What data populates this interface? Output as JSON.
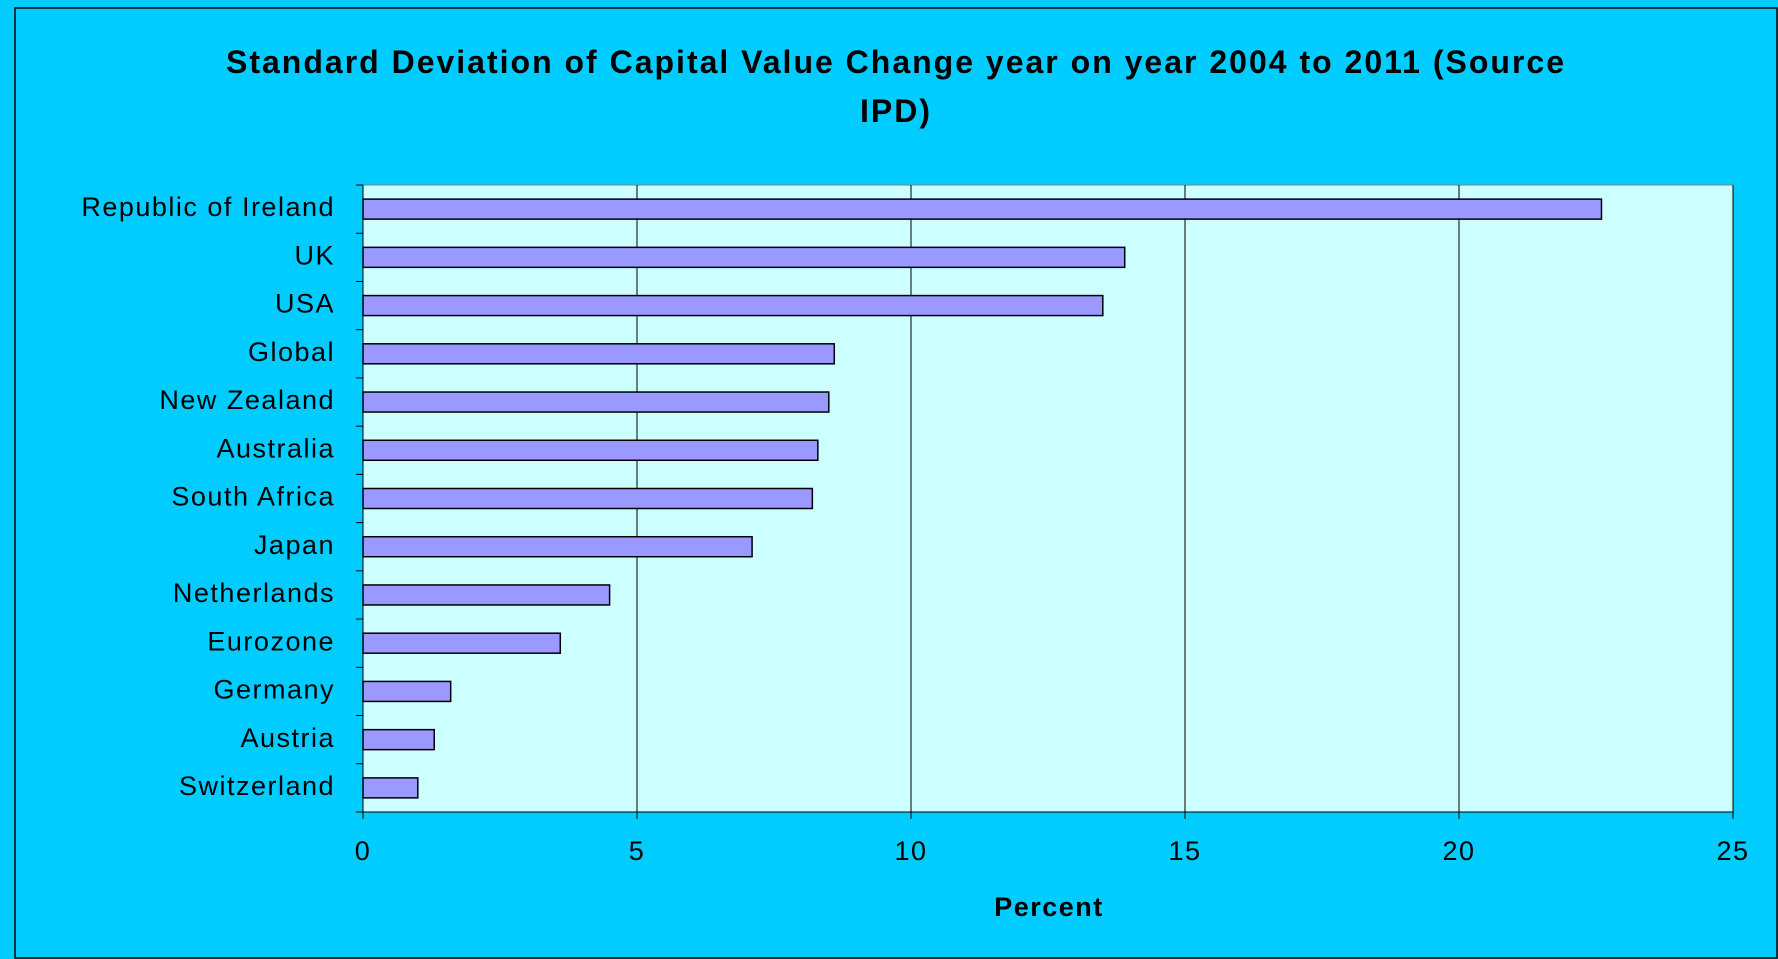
{
  "chart_data": {
    "type": "hbar",
    "title": "Standard Deviation of Capital Value Change year on year 2004 to 2011 (Source IPD)",
    "x_label": "Percent",
    "categories": [
      "Republic of Ireland",
      "UK",
      "USA",
      "Global",
      "New Zealand",
      "Australia",
      "South Africa",
      "Japan",
      "Netherlands",
      "Eurozone",
      "Germany",
      "Austria",
      "Switzerland"
    ],
    "values": [
      22.6,
      13.9,
      13.5,
      8.6,
      8.5,
      8.3,
      8.2,
      7.1,
      4.5,
      3.6,
      1.6,
      1.3,
      1.0
    ],
    "color": "#9999ff",
    "xlim": [
      0,
      25
    ],
    "xticks": [
      0,
      5,
      10,
      15,
      20,
      25
    ],
    "grid": true
  }
}
